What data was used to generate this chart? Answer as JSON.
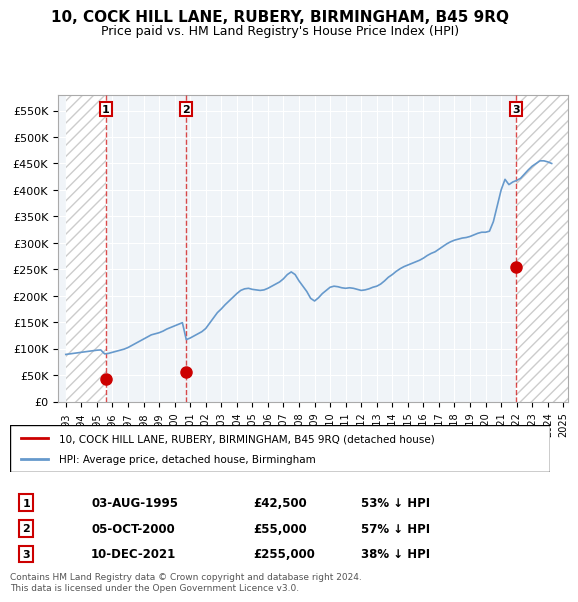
{
  "title": "10, COCK HILL LANE, RUBERY, BIRMINGHAM, B45 9RQ",
  "subtitle": "Price paid vs. HM Land Registry's House Price Index (HPI)",
  "ylim": [
    0,
    580000
  ],
  "yticks": [
    0,
    50000,
    100000,
    150000,
    200000,
    250000,
    300000,
    350000,
    400000,
    450000,
    500000,
    550000
  ],
  "xlabel_start": 1993,
  "xlabel_end": 2025,
  "sale_dates_num": [
    1995.583,
    2000.753,
    2021.942
  ],
  "sale_prices": [
    42500,
    55000,
    255000
  ],
  "sale_labels": [
    "1",
    "2",
    "3"
  ],
  "legend_line1": "10, COCK HILL LANE, RUBERY, BIRMINGHAM, B45 9RQ (detached house)",
  "legend_line2": "HPI: Average price, detached house, Birmingham",
  "table_data": [
    [
      "1",
      "03-AUG-1995",
      "£42,500",
      "53% ↓ HPI"
    ],
    [
      "2",
      "05-OCT-2000",
      "£55,000",
      "57% ↓ HPI"
    ],
    [
      "3",
      "10-DEC-2021",
      "£255,000",
      "38% ↓ HPI"
    ]
  ],
  "footer": "Contains HM Land Registry data © Crown copyright and database right 2024.\nThis data is licensed under the Open Government Licence v3.0.",
  "hpi_color": "#6699cc",
  "sale_color": "#cc0000",
  "label_box_color": "#cc0000",
  "bg_hatch_color": "#dddddd",
  "grid_color": "#cccccc",
  "hpi_data_x": [
    1993.0,
    1993.25,
    1993.5,
    1993.75,
    1994.0,
    1994.25,
    1994.5,
    1994.75,
    1995.0,
    1995.25,
    1995.5,
    1995.75,
    1996.0,
    1996.25,
    1996.5,
    1996.75,
    1997.0,
    1997.25,
    1997.5,
    1997.75,
    1998.0,
    1998.25,
    1998.5,
    1998.75,
    1999.0,
    1999.25,
    1999.5,
    1999.75,
    2000.0,
    2000.25,
    2000.5,
    2000.75,
    2001.0,
    2001.25,
    2001.5,
    2001.75,
    2002.0,
    2002.25,
    2002.5,
    2002.75,
    2003.0,
    2003.25,
    2003.5,
    2003.75,
    2004.0,
    2004.25,
    2004.5,
    2004.75,
    2005.0,
    2005.25,
    2005.5,
    2005.75,
    2006.0,
    2006.25,
    2006.5,
    2006.75,
    2007.0,
    2007.25,
    2007.5,
    2007.75,
    2008.0,
    2008.25,
    2008.5,
    2008.75,
    2009.0,
    2009.25,
    2009.5,
    2009.75,
    2010.0,
    2010.25,
    2010.5,
    2010.75,
    2011.0,
    2011.25,
    2011.5,
    2011.75,
    2012.0,
    2012.25,
    2012.5,
    2012.75,
    2013.0,
    2013.25,
    2013.5,
    2013.75,
    2014.0,
    2014.25,
    2014.5,
    2014.75,
    2015.0,
    2015.25,
    2015.5,
    2015.75,
    2016.0,
    2016.25,
    2016.5,
    2016.75,
    2017.0,
    2017.25,
    2017.5,
    2017.75,
    2018.0,
    2018.25,
    2018.5,
    2018.75,
    2019.0,
    2019.25,
    2019.5,
    2019.75,
    2020.0,
    2020.25,
    2020.5,
    2020.75,
    2021.0,
    2021.25,
    2021.5,
    2021.75,
    2022.0,
    2022.25,
    2022.5,
    2022.75,
    2023.0,
    2023.25,
    2023.5,
    2023.75,
    2024.0,
    2024.25
  ],
  "hpi_data_y": [
    89000,
    90000,
    91000,
    92000,
    93000,
    94000,
    95000,
    96000,
    97000,
    97500,
    90000,
    91000,
    93000,
    95000,
    97000,
    99000,
    102000,
    106000,
    110000,
    114000,
    118000,
    122000,
    126000,
    128000,
    130000,
    133000,
    137000,
    140000,
    143000,
    146000,
    149000,
    117000,
    120000,
    124000,
    128000,
    132000,
    138000,
    148000,
    158000,
    168000,
    175000,
    183000,
    190000,
    197000,
    204000,
    210000,
    213000,
    214000,
    212000,
    211000,
    210000,
    211000,
    214000,
    218000,
    222000,
    226000,
    232000,
    240000,
    245000,
    240000,
    228000,
    218000,
    208000,
    195000,
    190000,
    196000,
    204000,
    210000,
    216000,
    218000,
    217000,
    215000,
    214000,
    215000,
    214000,
    212000,
    210000,
    211000,
    213000,
    216000,
    218000,
    222000,
    228000,
    235000,
    240000,
    246000,
    251000,
    255000,
    258000,
    261000,
    264000,
    267000,
    271000,
    276000,
    280000,
    283000,
    288000,
    293000,
    298000,
    302000,
    305000,
    307000,
    309000,
    310000,
    312000,
    315000,
    318000,
    320000,
    320000,
    322000,
    340000,
    370000,
    400000,
    420000,
    410000,
    415000,
    418000,
    422000,
    430000,
    438000,
    445000,
    450000,
    455000,
    455000,
    453000,
    450000
  ]
}
